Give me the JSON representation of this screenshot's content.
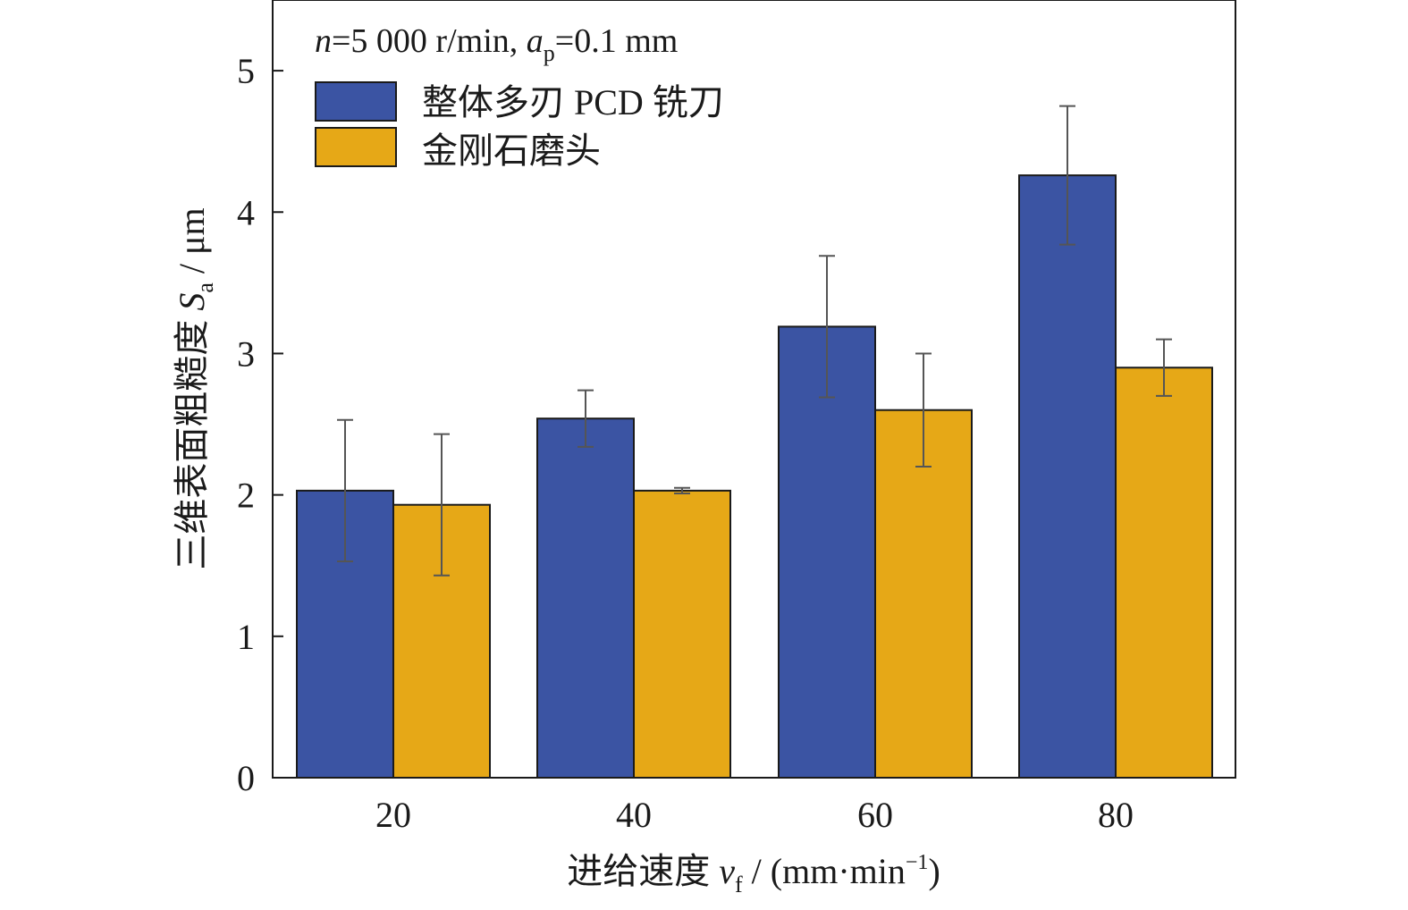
{
  "chart_data": {
    "type": "bar",
    "condition": {
      "n_var": "n",
      "n_text": "=5 000 r/min, ",
      "ap_var": "a",
      "ap_sub": "p",
      "ap_text": "=0.1 mm"
    },
    "categories": [
      "20",
      "40",
      "60",
      "80"
    ],
    "series": [
      {
        "name": "整体多刃 PCD 铣刀",
        "color": "#3b54a3",
        "values": [
          2.03,
          2.54,
          3.19,
          4.26
        ],
        "error": [
          0.5,
          0.2,
          0.5,
          0.49
        ]
      },
      {
        "name": "金刚石磨头",
        "color": "#e6a817",
        "values": [
          1.93,
          2.03,
          2.6,
          2.9
        ],
        "error": [
          0.5,
          0.02,
          0.4,
          0.2
        ]
      }
    ],
    "ylim": [
      0,
      5.5
    ],
    "yticks": [
      "0",
      "1",
      "2",
      "3",
      "4",
      "5"
    ],
    "ytick_values": [
      0,
      1,
      2,
      3,
      4,
      5
    ],
    "ylabel": {
      "prefix": "三维表面粗糙度 ",
      "var": "S",
      "sub": "a",
      "suffix": " / μm"
    },
    "xlabel": {
      "prefix": "进给速度 ",
      "var": "v",
      "sub": "f",
      "suffix_a": " / (mm·min",
      "sup": "−1",
      "suffix_b": ")"
    },
    "legend_position": "top-left",
    "grid": false
  }
}
